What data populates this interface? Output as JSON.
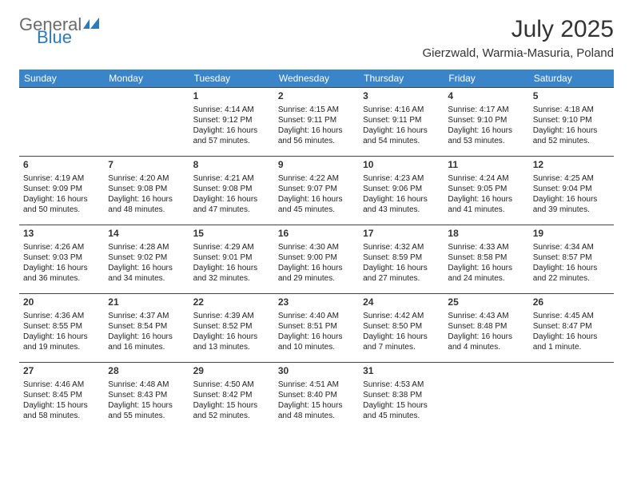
{
  "brand": {
    "word1": "General",
    "word2": "Blue"
  },
  "title": "July 2025",
  "location": "Gierzwald, Warmia-Masuria, Poland",
  "colors": {
    "header_bg": "#3a85c9",
    "header_text": "#ffffff",
    "brand_gray": "#6b6b6b",
    "brand_blue": "#2f79b9",
    "text": "#333333",
    "border": "#444444",
    "background": "#ffffff"
  },
  "fonts": {
    "title_size": 30,
    "location_size": 15,
    "dayhead_size": 12,
    "cell_size": 10,
    "daynum_size": 12
  },
  "day_headers": [
    "Sunday",
    "Monday",
    "Tuesday",
    "Wednesday",
    "Thursday",
    "Friday",
    "Saturday"
  ],
  "weeks": [
    [
      null,
      null,
      {
        "n": "1",
        "sr": "Sunrise: 4:14 AM",
        "ss": "Sunset: 9:12 PM",
        "d1": "Daylight: 16 hours",
        "d2": "and 57 minutes."
      },
      {
        "n": "2",
        "sr": "Sunrise: 4:15 AM",
        "ss": "Sunset: 9:11 PM",
        "d1": "Daylight: 16 hours",
        "d2": "and 56 minutes."
      },
      {
        "n": "3",
        "sr": "Sunrise: 4:16 AM",
        "ss": "Sunset: 9:11 PM",
        "d1": "Daylight: 16 hours",
        "d2": "and 54 minutes."
      },
      {
        "n": "4",
        "sr": "Sunrise: 4:17 AM",
        "ss": "Sunset: 9:10 PM",
        "d1": "Daylight: 16 hours",
        "d2": "and 53 minutes."
      },
      {
        "n": "5",
        "sr": "Sunrise: 4:18 AM",
        "ss": "Sunset: 9:10 PM",
        "d1": "Daylight: 16 hours",
        "d2": "and 52 minutes."
      }
    ],
    [
      {
        "n": "6",
        "sr": "Sunrise: 4:19 AM",
        "ss": "Sunset: 9:09 PM",
        "d1": "Daylight: 16 hours",
        "d2": "and 50 minutes."
      },
      {
        "n": "7",
        "sr": "Sunrise: 4:20 AM",
        "ss": "Sunset: 9:08 PM",
        "d1": "Daylight: 16 hours",
        "d2": "and 48 minutes."
      },
      {
        "n": "8",
        "sr": "Sunrise: 4:21 AM",
        "ss": "Sunset: 9:08 PM",
        "d1": "Daylight: 16 hours",
        "d2": "and 47 minutes."
      },
      {
        "n": "9",
        "sr": "Sunrise: 4:22 AM",
        "ss": "Sunset: 9:07 PM",
        "d1": "Daylight: 16 hours",
        "d2": "and 45 minutes."
      },
      {
        "n": "10",
        "sr": "Sunrise: 4:23 AM",
        "ss": "Sunset: 9:06 PM",
        "d1": "Daylight: 16 hours",
        "d2": "and 43 minutes."
      },
      {
        "n": "11",
        "sr": "Sunrise: 4:24 AM",
        "ss": "Sunset: 9:05 PM",
        "d1": "Daylight: 16 hours",
        "d2": "and 41 minutes."
      },
      {
        "n": "12",
        "sr": "Sunrise: 4:25 AM",
        "ss": "Sunset: 9:04 PM",
        "d1": "Daylight: 16 hours",
        "d2": "and 39 minutes."
      }
    ],
    [
      {
        "n": "13",
        "sr": "Sunrise: 4:26 AM",
        "ss": "Sunset: 9:03 PM",
        "d1": "Daylight: 16 hours",
        "d2": "and 36 minutes."
      },
      {
        "n": "14",
        "sr": "Sunrise: 4:28 AM",
        "ss": "Sunset: 9:02 PM",
        "d1": "Daylight: 16 hours",
        "d2": "and 34 minutes."
      },
      {
        "n": "15",
        "sr": "Sunrise: 4:29 AM",
        "ss": "Sunset: 9:01 PM",
        "d1": "Daylight: 16 hours",
        "d2": "and 32 minutes."
      },
      {
        "n": "16",
        "sr": "Sunrise: 4:30 AM",
        "ss": "Sunset: 9:00 PM",
        "d1": "Daylight: 16 hours",
        "d2": "and 29 minutes."
      },
      {
        "n": "17",
        "sr": "Sunrise: 4:32 AM",
        "ss": "Sunset: 8:59 PM",
        "d1": "Daylight: 16 hours",
        "d2": "and 27 minutes."
      },
      {
        "n": "18",
        "sr": "Sunrise: 4:33 AM",
        "ss": "Sunset: 8:58 PM",
        "d1": "Daylight: 16 hours",
        "d2": "and 24 minutes."
      },
      {
        "n": "19",
        "sr": "Sunrise: 4:34 AM",
        "ss": "Sunset: 8:57 PM",
        "d1": "Daylight: 16 hours",
        "d2": "and 22 minutes."
      }
    ],
    [
      {
        "n": "20",
        "sr": "Sunrise: 4:36 AM",
        "ss": "Sunset: 8:55 PM",
        "d1": "Daylight: 16 hours",
        "d2": "and 19 minutes."
      },
      {
        "n": "21",
        "sr": "Sunrise: 4:37 AM",
        "ss": "Sunset: 8:54 PM",
        "d1": "Daylight: 16 hours",
        "d2": "and 16 minutes."
      },
      {
        "n": "22",
        "sr": "Sunrise: 4:39 AM",
        "ss": "Sunset: 8:52 PM",
        "d1": "Daylight: 16 hours",
        "d2": "and 13 minutes."
      },
      {
        "n": "23",
        "sr": "Sunrise: 4:40 AM",
        "ss": "Sunset: 8:51 PM",
        "d1": "Daylight: 16 hours",
        "d2": "and 10 minutes."
      },
      {
        "n": "24",
        "sr": "Sunrise: 4:42 AM",
        "ss": "Sunset: 8:50 PM",
        "d1": "Daylight: 16 hours",
        "d2": "and 7 minutes."
      },
      {
        "n": "25",
        "sr": "Sunrise: 4:43 AM",
        "ss": "Sunset: 8:48 PM",
        "d1": "Daylight: 16 hours",
        "d2": "and 4 minutes."
      },
      {
        "n": "26",
        "sr": "Sunrise: 4:45 AM",
        "ss": "Sunset: 8:47 PM",
        "d1": "Daylight: 16 hours",
        "d2": "and 1 minute."
      }
    ],
    [
      {
        "n": "27",
        "sr": "Sunrise: 4:46 AM",
        "ss": "Sunset: 8:45 PM",
        "d1": "Daylight: 15 hours",
        "d2": "and 58 minutes."
      },
      {
        "n": "28",
        "sr": "Sunrise: 4:48 AM",
        "ss": "Sunset: 8:43 PM",
        "d1": "Daylight: 15 hours",
        "d2": "and 55 minutes."
      },
      {
        "n": "29",
        "sr": "Sunrise: 4:50 AM",
        "ss": "Sunset: 8:42 PM",
        "d1": "Daylight: 15 hours",
        "d2": "and 52 minutes."
      },
      {
        "n": "30",
        "sr": "Sunrise: 4:51 AM",
        "ss": "Sunset: 8:40 PM",
        "d1": "Daylight: 15 hours",
        "d2": "and 48 minutes."
      },
      {
        "n": "31",
        "sr": "Sunrise: 4:53 AM",
        "ss": "Sunset: 8:38 PM",
        "d1": "Daylight: 15 hours",
        "d2": "and 45 minutes."
      },
      null,
      null
    ]
  ]
}
